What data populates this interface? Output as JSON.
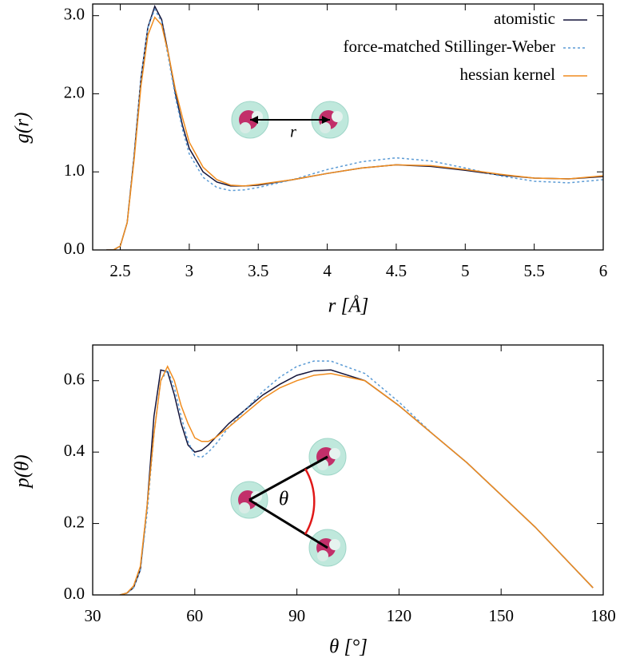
{
  "chart_data": [
    {
      "type": "line",
      "x_label": "r [Å]",
      "y_label": "g(r)",
      "annotation": "r",
      "xlim": [
        2.3,
        6
      ],
      "xticks": [
        2.5,
        3,
        3.5,
        4,
        4.5,
        5,
        5.5,
        6
      ],
      "ylim": [
        0,
        3.15
      ],
      "yticks": [
        {
          "value": 0,
          "label": "0.0"
        },
        {
          "value": 1,
          "label": "1.0"
        },
        {
          "value": 2,
          "label": "2.0"
        },
        {
          "value": 3,
          "label": "3.0"
        }
      ],
      "legend": "upper right",
      "x": [
        2.4,
        2.45,
        2.5,
        2.55,
        2.6,
        2.65,
        2.7,
        2.75,
        2.8,
        2.85,
        2.9,
        2.95,
        3.0,
        3.1,
        3.2,
        3.3,
        3.4,
        3.5,
        3.75,
        4.0,
        4.25,
        4.5,
        4.75,
        5.0,
        5.25,
        5.5,
        5.75,
        6.0
      ],
      "series": [
        {
          "name": "atomistic",
          "color": "#14143a",
          "line_style": "solid",
          "values": [
            0,
            0,
            0.05,
            0.35,
            1.2,
            2.2,
            2.85,
            3.12,
            2.95,
            2.5,
            2.0,
            1.6,
            1.3,
            1.0,
            0.87,
            0.82,
            0.82,
            0.83,
            0.9,
            0.98,
            1.05,
            1.09,
            1.07,
            1.02,
            0.96,
            0.92,
            0.91,
            0.94
          ]
        },
        {
          "name": "force-matched Stillinger-Weber",
          "color": "#5b9bd5",
          "line_style": "dashed",
          "values": [
            0,
            0,
            0.05,
            0.35,
            1.2,
            2.2,
            2.85,
            3.08,
            2.92,
            2.45,
            1.95,
            1.55,
            1.23,
            0.93,
            0.8,
            0.76,
            0.77,
            0.8,
            0.9,
            1.03,
            1.13,
            1.18,
            1.14,
            1.05,
            0.95,
            0.88,
            0.86,
            0.9
          ]
        },
        {
          "name": "hessian kernel",
          "color": "#f08c1e",
          "line_style": "solid",
          "values": [
            0,
            0,
            0.05,
            0.35,
            1.15,
            2.1,
            2.75,
            2.98,
            2.88,
            2.5,
            2.05,
            1.7,
            1.38,
            1.06,
            0.9,
            0.83,
            0.82,
            0.84,
            0.9,
            0.98,
            1.05,
            1.09,
            1.08,
            1.03,
            0.97,
            0.92,
            0.91,
            0.95
          ]
        }
      ]
    },
    {
      "type": "line",
      "x_label": "θ [°]",
      "y_label": "p(θ)",
      "annotation": "θ",
      "xlim": [
        30,
        180
      ],
      "xticks": [
        30,
        60,
        90,
        120,
        150,
        180
      ],
      "ylim": [
        0,
        0.7
      ],
      "yticks": [
        {
          "value": 0,
          "label": "0.0"
        },
        0.2,
        0.4,
        0.6
      ],
      "x": [
        38,
        40,
        42,
        44,
        46,
        48,
        50,
        52,
        54,
        56,
        58,
        60,
        62,
        64,
        66,
        70,
        75,
        80,
        85,
        90,
        95,
        100,
        110,
        120,
        130,
        140,
        150,
        160,
        170,
        177
      ],
      "series": [
        {
          "color": "#14143a",
          "line_style": "solid",
          "values": [
            0,
            0.005,
            0.02,
            0.07,
            0.25,
            0.5,
            0.63,
            0.625,
            0.56,
            0.48,
            0.42,
            0.4,
            0.405,
            0.42,
            0.44,
            0.48,
            0.52,
            0.56,
            0.59,
            0.615,
            0.628,
            0.63,
            0.6,
            0.53,
            0.45,
            0.37,
            0.28,
            0.19,
            0.09,
            0.02
          ]
        },
        {
          "color": "#5b9bd5",
          "line_style": "dashed",
          "values": [
            0,
            0.005,
            0.02,
            0.07,
            0.23,
            0.45,
            0.6,
            0.63,
            0.58,
            0.5,
            0.43,
            0.39,
            0.385,
            0.4,
            0.42,
            0.47,
            0.52,
            0.57,
            0.61,
            0.64,
            0.655,
            0.655,
            0.62,
            0.54,
            0.45,
            0.37,
            0.28,
            0.19,
            0.09,
            0.02
          ]
        },
        {
          "color": "#f08c1e",
          "line_style": "solid",
          "values": [
            0,
            0.005,
            0.025,
            0.08,
            0.25,
            0.45,
            0.6,
            0.64,
            0.6,
            0.53,
            0.48,
            0.44,
            0.43,
            0.43,
            0.44,
            0.47,
            0.51,
            0.55,
            0.58,
            0.6,
            0.615,
            0.62,
            0.6,
            0.53,
            0.45,
            0.37,
            0.28,
            0.19,
            0.09,
            0.02
          ]
        }
      ]
    }
  ]
}
